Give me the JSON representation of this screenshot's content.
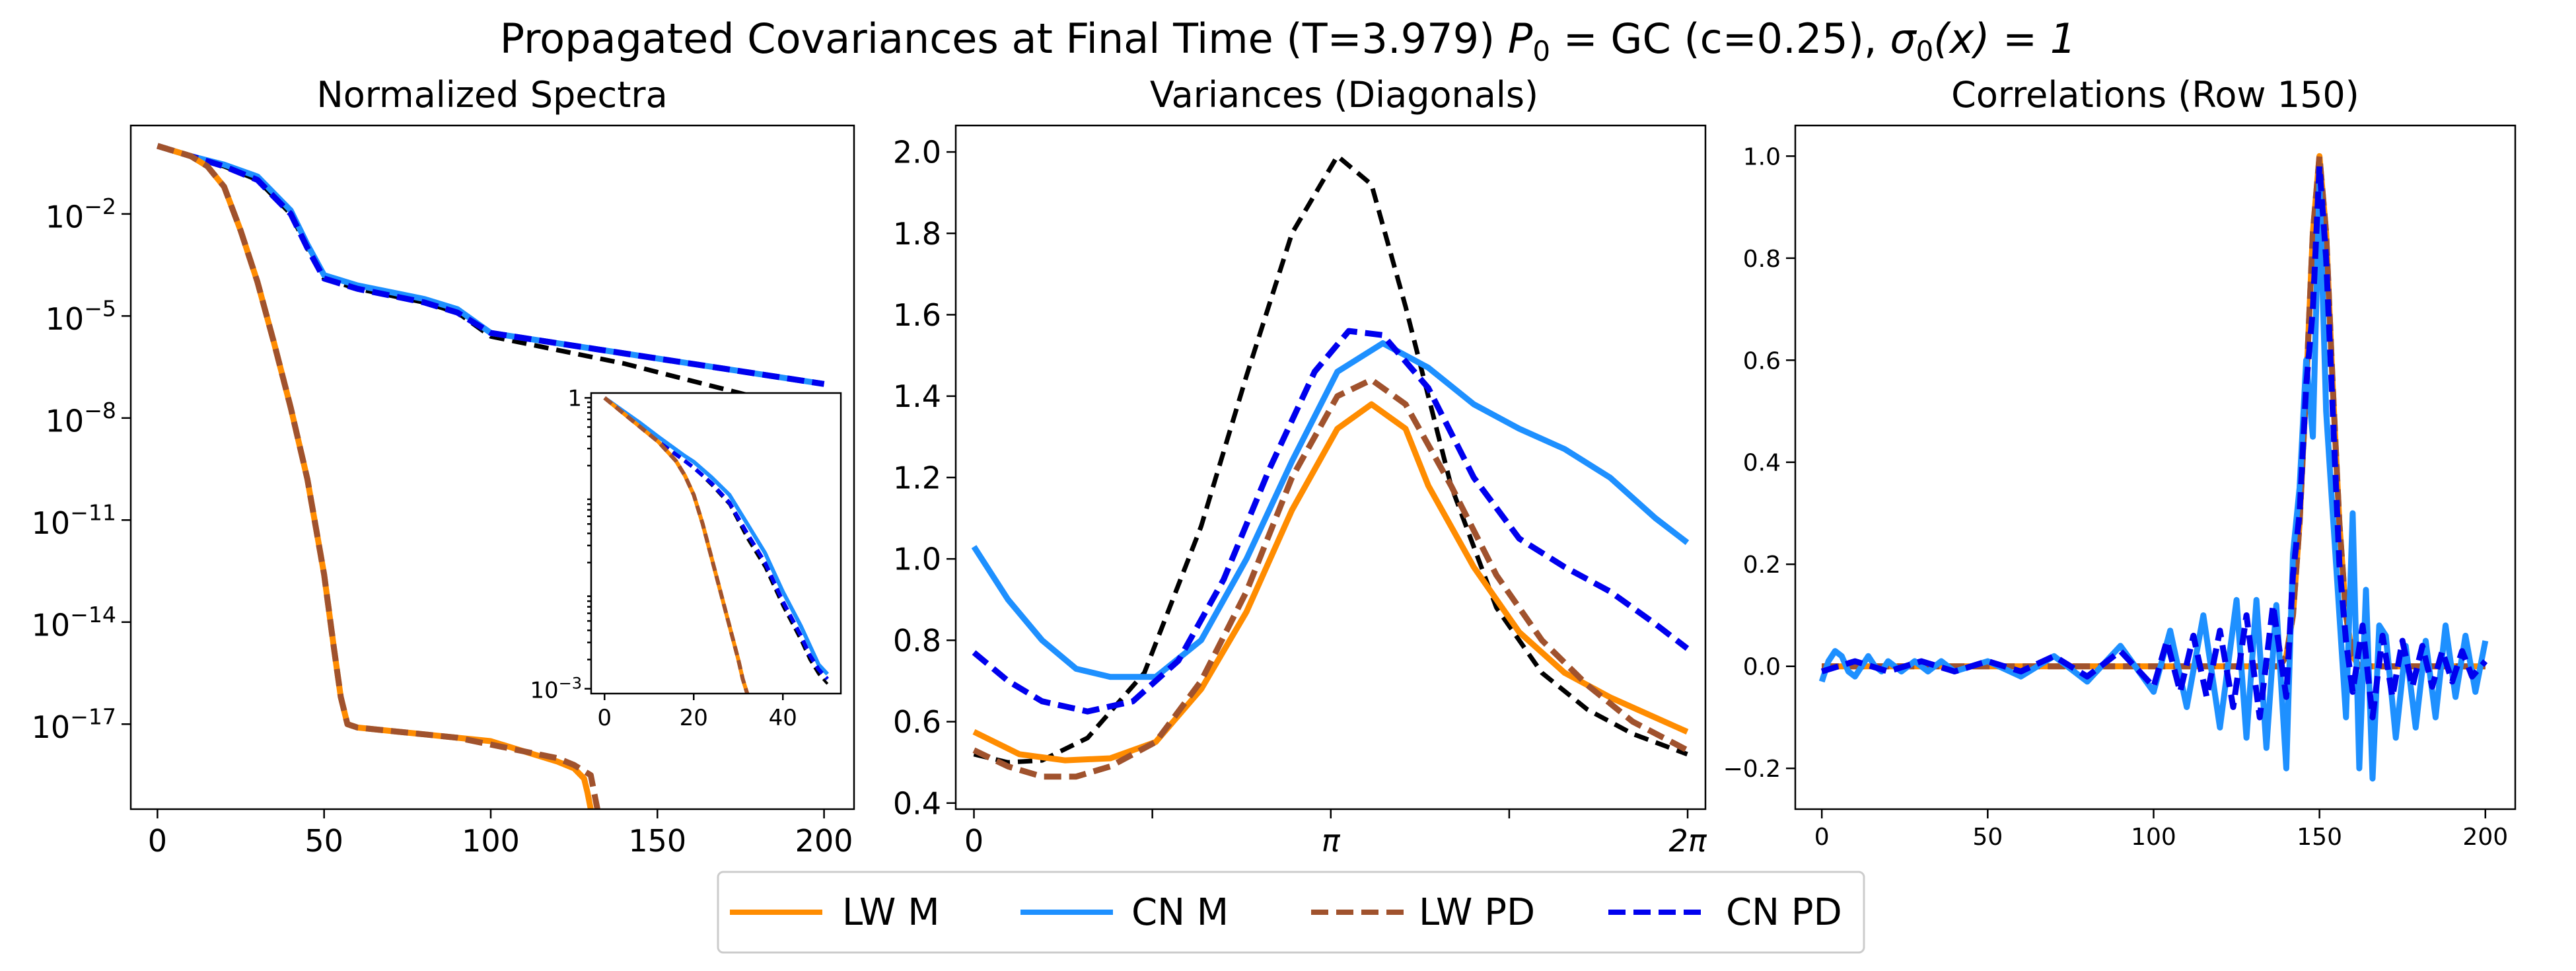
{
  "figure": {
    "suptitle_main": "Propagated Covariances at Final Time (T=3.979) ",
    "suptitle_p_sym": "P",
    "suptitle_p_sub": "0",
    "suptitle_mid": " = GC (c=0.25), ",
    "suptitle_sigma": "σ",
    "suptitle_sigma_sub": "0",
    "suptitle_tail": "(x) = 1"
  },
  "legend": {
    "entries": [
      {
        "label": "LW M",
        "color": "#ff8c00",
        "dashed": false
      },
      {
        "label": "CN M",
        "color": "#1e90ff",
        "dashed": false
      },
      {
        "label": "LW PD",
        "color": "#a0522d",
        "dashed": true
      },
      {
        "label": "CN PD",
        "color": "#0000ee",
        "dashed": true
      }
    ]
  },
  "colors": {
    "lw_m": "#ff8c00",
    "cn_m": "#1e90ff",
    "lw_pd": "#a0522d",
    "cn_pd": "#0000ee",
    "truth": "#000000"
  },
  "chart_data": [
    {
      "type": "line",
      "title": "Normalized Spectra",
      "yscale": "log",
      "xlim": [
        -8,
        209
      ],
      "ylim_log10": [
        -19.5,
        0.6
      ],
      "xticks": [
        0,
        50,
        100,
        150,
        200
      ],
      "xtick_labels": [
        "0",
        "50",
        "100",
        "150",
        "200"
      ],
      "yticks_log10": [
        -2,
        -5,
        -8,
        -11,
        -14,
        -17
      ],
      "ytick_base": "10",
      "ytick_exps": [
        "−2",
        "−5",
        "−8",
        "−11",
        "−14",
        "−17"
      ],
      "series": [
        {
          "name": "truth",
          "x": [
            0,
            10,
            20,
            30,
            40,
            45,
            50,
            60,
            70,
            80,
            90,
            100,
            120,
            140,
            160,
            180,
            200
          ],
          "log10y": [
            0,
            -0.3,
            -0.6,
            -1.0,
            -2.0,
            -3.0,
            -3.9,
            -4.2,
            -4.4,
            -4.6,
            -4.9,
            -5.6,
            -6.0,
            -6.4,
            -6.9,
            -7.4,
            -8.0
          ]
        },
        {
          "name": "CN M",
          "x": [
            0,
            10,
            20,
            30,
            40,
            45,
            50,
            60,
            70,
            80,
            90,
            100,
            120,
            140,
            160,
            180,
            200
          ],
          "log10y": [
            0,
            -0.3,
            -0.55,
            -0.9,
            -1.9,
            -2.9,
            -3.8,
            -4.1,
            -4.3,
            -4.5,
            -4.8,
            -5.5,
            -5.8,
            -6.1,
            -6.4,
            -6.7,
            -7.0
          ]
        },
        {
          "name": "CN PD",
          "x": [
            0,
            10,
            20,
            30,
            40,
            45,
            50,
            60,
            70,
            80,
            90,
            100,
            120,
            140,
            160,
            180,
            200
          ],
          "log10y": [
            0,
            -0.3,
            -0.6,
            -1.0,
            -2.0,
            -3.0,
            -3.9,
            -4.2,
            -4.4,
            -4.6,
            -4.9,
            -5.5,
            -5.8,
            -6.1,
            -6.4,
            -6.7,
            -7.0
          ]
        },
        {
          "name": "LW M",
          "x": [
            0,
            10,
            15,
            20,
            25,
            30,
            35,
            40,
            45,
            50,
            53,
            55,
            57,
            60,
            70,
            80,
            90,
            100,
            110,
            120,
            125,
            128,
            129,
            130
          ],
          "log10y": [
            0,
            -0.3,
            -0.6,
            -1.2,
            -2.5,
            -4.0,
            -5.8,
            -7.7,
            -9.8,
            -12.6,
            -14.8,
            -16.2,
            -17.0,
            -17.1,
            -17.2,
            -17.3,
            -17.4,
            -17.5,
            -17.8,
            -18.1,
            -18.3,
            -18.6,
            -19.0,
            -19.5
          ]
        },
        {
          "name": "LW PD",
          "x": [
            0,
            10,
            15,
            20,
            25,
            30,
            35,
            40,
            45,
            50,
            53,
            55,
            57,
            60,
            70,
            80,
            90,
            100,
            110,
            120,
            125,
            130,
            131,
            132
          ],
          "log10y": [
            0,
            -0.3,
            -0.6,
            -1.2,
            -2.5,
            -4.0,
            -5.8,
            -7.7,
            -9.8,
            -12.6,
            -14.8,
            -16.2,
            -17.0,
            -17.1,
            -17.2,
            -17.3,
            -17.4,
            -17.6,
            -17.8,
            -18.0,
            -18.2,
            -18.5,
            -19.0,
            -19.5
          ]
        }
      ],
      "inset": {
        "xlim": [
          -3,
          53
        ],
        "ylim_log10": [
          -3.05,
          0.05
        ],
        "xticks": [
          0,
          20,
          40
        ],
        "xtick_labels": [
          "0",
          "20",
          "40"
        ],
        "ytick_labels": [
          "1",
          "10"
        ],
        "ytick_exp_bottom": "−3",
        "series": [
          {
            "name": "truth",
            "x": [
              0,
              4,
              8,
              12,
              15,
              18,
              20,
              24,
              28,
              32,
              36,
              40,
              44,
              46,
              48,
              50
            ],
            "log10y": [
              0,
              -0.15,
              -0.3,
              -0.45,
              -0.55,
              -0.65,
              -0.72,
              -0.9,
              -1.1,
              -1.45,
              -1.75,
              -2.15,
              -2.5,
              -2.7,
              -2.85,
              -2.95
            ]
          },
          {
            "name": "CN M",
            "x": [
              0,
              4,
              8,
              12,
              15,
              18,
              20,
              24,
              28,
              32,
              36,
              40,
              44,
              46,
              48,
              50
            ],
            "log10y": [
              0,
              -0.13,
              -0.26,
              -0.4,
              -0.5,
              -0.6,
              -0.66,
              -0.82,
              -1.0,
              -1.3,
              -1.6,
              -2.0,
              -2.35,
              -2.55,
              -2.75,
              -2.85
            ]
          },
          {
            "name": "CN PD",
            "x": [
              0,
              4,
              8,
              12,
              15,
              18,
              20,
              24,
              28,
              32,
              36,
              40,
              44,
              46,
              48,
              50
            ],
            "log10y": [
              0,
              -0.15,
              -0.3,
              -0.45,
              -0.55,
              -0.65,
              -0.72,
              -0.88,
              -1.08,
              -1.4,
              -1.7,
              -2.1,
              -2.45,
              -2.65,
              -2.8,
              -2.9
            ]
          },
          {
            "name": "LW M",
            "x": [
              0,
              4,
              8,
              12,
              16,
              18,
              20,
              22,
              24,
              26,
              28,
              30,
              31,
              32
            ],
            "log10y": [
              0,
              -0.15,
              -0.3,
              -0.45,
              -0.65,
              -0.8,
              -1.0,
              -1.3,
              -1.65,
              -2.0,
              -2.35,
              -2.7,
              -2.9,
              -3.05
            ]
          },
          {
            "name": "LW PD",
            "x": [
              0,
              4,
              8,
              12,
              16,
              18,
              20,
              22,
              24,
              26,
              28,
              30,
              31,
              32
            ],
            "log10y": [
              0,
              -0.15,
              -0.3,
              -0.45,
              -0.65,
              -0.8,
              -1.0,
              -1.3,
              -1.65,
              -2.0,
              -2.35,
              -2.7,
              -2.9,
              -3.05
            ]
          }
        ]
      }
    },
    {
      "type": "line",
      "title": "Variances (Diagonals)",
      "xlim": [
        -0.16,
        6.44
      ],
      "ylim": [
        0.385,
        2.065
      ],
      "xticks": [
        0,
        1.5708,
        3.1416,
        4.7124,
        6.2832
      ],
      "xtick_labels": [
        "0",
        "",
        "π",
        "",
        "2π"
      ],
      "yticks": [
        0.4,
        0.6,
        0.8,
        1.0,
        1.2,
        1.4,
        1.6,
        1.8,
        2.0
      ],
      "ytick_labels": [
        "0.4",
        "0.6",
        "0.8",
        "1.0",
        "1.2",
        "1.4",
        "1.6",
        "1.8",
        "2.0"
      ],
      "series": [
        {
          "name": "truth",
          "x": [
            0,
            0.3,
            0.6,
            1.0,
            1.5,
            2.0,
            2.4,
            2.8,
            3.2,
            3.5,
            3.8,
            4.2,
            4.6,
            5.0,
            5.4,
            5.8,
            6.28
          ],
          "y": [
            0.52,
            0.5,
            0.505,
            0.56,
            0.72,
            1.08,
            1.45,
            1.8,
            1.99,
            1.92,
            1.62,
            1.18,
            0.88,
            0.72,
            0.63,
            0.57,
            0.52
          ]
        },
        {
          "name": "LW M",
          "x": [
            0,
            0.4,
            0.8,
            1.2,
            1.6,
            2.0,
            2.4,
            2.8,
            3.2,
            3.5,
            3.8,
            4.0,
            4.4,
            4.8,
            5.2,
            5.6,
            6.0,
            6.28
          ],
          "y": [
            0.575,
            0.52,
            0.505,
            0.51,
            0.55,
            0.68,
            0.87,
            1.12,
            1.32,
            1.38,
            1.32,
            1.18,
            0.98,
            0.82,
            0.72,
            0.66,
            0.61,
            0.575
          ]
        },
        {
          "name": "CN M",
          "x": [
            0,
            0.3,
            0.6,
            0.9,
            1.2,
            1.6,
            2.0,
            2.4,
            2.8,
            3.2,
            3.6,
            4.0,
            4.4,
            4.8,
            5.2,
            5.6,
            6.0,
            6.28
          ],
          "y": [
            1.03,
            0.9,
            0.8,
            0.73,
            0.71,
            0.71,
            0.8,
            1.0,
            1.24,
            1.46,
            1.53,
            1.47,
            1.38,
            1.32,
            1.27,
            1.2,
            1.1,
            1.04
          ]
        },
        {
          "name": "LW PD",
          "x": [
            0,
            0.3,
            0.6,
            0.9,
            1.2,
            1.6,
            2.0,
            2.4,
            2.8,
            3.2,
            3.5,
            3.8,
            4.2,
            4.6,
            5.0,
            5.4,
            5.8,
            6.28
          ],
          "y": [
            0.53,
            0.49,
            0.465,
            0.465,
            0.49,
            0.55,
            0.7,
            0.92,
            1.2,
            1.4,
            1.44,
            1.38,
            1.18,
            0.96,
            0.8,
            0.69,
            0.6,
            0.53
          ]
        },
        {
          "name": "CN PD",
          "x": [
            0,
            0.3,
            0.6,
            1.0,
            1.4,
            1.8,
            2.2,
            2.6,
            3.0,
            3.3,
            3.6,
            4.0,
            4.4,
            4.8,
            5.2,
            5.6,
            6.0,
            6.28
          ],
          "y": [
            0.77,
            0.7,
            0.65,
            0.625,
            0.65,
            0.75,
            0.95,
            1.22,
            1.46,
            1.56,
            1.55,
            1.42,
            1.2,
            1.05,
            0.98,
            0.92,
            0.84,
            0.78
          ]
        }
      ]
    },
    {
      "type": "line",
      "title": "Correlations (Row 150)",
      "xlim": [
        -8,
        209
      ],
      "ylim": [
        -0.28,
        1.06
      ],
      "xticks": [
        0,
        50,
        100,
        150,
        200
      ],
      "xtick_labels": [
        "0",
        "50",
        "100",
        "150",
        "200"
      ],
      "yticks": [
        -0.2,
        0.0,
        0.2,
        0.4,
        0.6,
        0.8,
        1.0
      ],
      "ytick_labels": [
        "−0.2",
        "0.0",
        "0.2",
        "0.4",
        "0.6",
        "0.8",
        "1.0"
      ],
      "series": [
        {
          "name": "truth",
          "x": [
            0,
            138,
            140,
            142,
            144,
            146,
            148,
            150,
            152,
            154,
            156,
            158,
            160,
            162,
            200
          ],
          "y": [
            0,
            0,
            0.02,
            0.1,
            0.28,
            0.55,
            0.85,
            1.0,
            0.85,
            0.55,
            0.28,
            0.1,
            0.02,
            0,
            0
          ]
        },
        {
          "name": "LW M",
          "x": [
            0,
            138,
            140,
            142,
            144,
            146,
            148,
            150,
            152,
            154,
            156,
            158,
            160,
            162,
            200
          ],
          "y": [
            0,
            0,
            0.02,
            0.1,
            0.28,
            0.55,
            0.85,
            1.0,
            0.85,
            0.55,
            0.28,
            0.1,
            0.02,
            0,
            0
          ]
        },
        {
          "name": "LW PD",
          "x": [
            0,
            138,
            140,
            142,
            144,
            146,
            148,
            150,
            152,
            154,
            156,
            158,
            160,
            162,
            200
          ],
          "y": [
            0,
            0,
            0.02,
            0.1,
            0.28,
            0.55,
            0.85,
            1.0,
            0.85,
            0.55,
            0.28,
            0.1,
            0.02,
            0,
            0
          ]
        },
        {
          "name": "CN M",
          "x": [
            0,
            2,
            4,
            6,
            8,
            10,
            12,
            14,
            16,
            18,
            20,
            24,
            28,
            32,
            36,
            40,
            50,
            60,
            70,
            80,
            90,
            100,
            105,
            110,
            115,
            120,
            125,
            128,
            131,
            134,
            137,
            140,
            142,
            144,
            146,
            148,
            150,
            152,
            154,
            156,
            158,
            160,
            162,
            164,
            166,
            168,
            170,
            173,
            176,
            179,
            182,
            185,
            188,
            191,
            194,
            197,
            200
          ],
          "y": [
            -0.03,
            0.01,
            0.03,
            0.02,
            -0.01,
            -0.02,
            0.0,
            0.02,
            0.0,
            -0.01,
            0.01,
            -0.01,
            0.01,
            -0.01,
            0.01,
            -0.01,
            0.01,
            -0.02,
            0.02,
            -0.03,
            0.04,
            -0.05,
            0.07,
            -0.08,
            0.1,
            -0.12,
            0.13,
            -0.14,
            0.13,
            -0.16,
            0.12,
            -0.2,
            0.22,
            0.35,
            0.6,
            0.45,
            0.95,
            0.5,
            0.3,
            0.1,
            -0.1,
            0.3,
            -0.2,
            0.15,
            -0.22,
            0.08,
            0.06,
            -0.14,
            0.04,
            -0.12,
            0.05,
            -0.1,
            0.08,
            -0.06,
            0.06,
            -0.05,
            0.05
          ]
        },
        {
          "name": "CN PD",
          "x": [
            0,
            10,
            20,
            30,
            40,
            50,
            60,
            70,
            80,
            90,
            100,
            104,
            108,
            112,
            116,
            120,
            124,
            128,
            132,
            136,
            140,
            142,
            144,
            146,
            148,
            150,
            152,
            154,
            156,
            158,
            160,
            163,
            166,
            169,
            172,
            175,
            178,
            181,
            184,
            187,
            190,
            193,
            196,
            200
          ],
          "y": [
            -0.01,
            0.01,
            -0.01,
            0.01,
            -0.01,
            0.01,
            -0.01,
            0.02,
            -0.02,
            0.03,
            -0.04,
            0.05,
            -0.05,
            0.06,
            -0.06,
            0.07,
            -0.08,
            0.1,
            -0.1,
            0.12,
            -0.06,
            0.18,
            0.3,
            0.55,
            0.7,
            0.98,
            0.8,
            0.5,
            0.2,
            0.05,
            -0.05,
            0.08,
            -0.1,
            0.06,
            -0.06,
            0.05,
            -0.04,
            0.04,
            -0.04,
            0.03,
            -0.03,
            0.03,
            -0.02,
            0.01
          ]
        }
      ]
    }
  ]
}
